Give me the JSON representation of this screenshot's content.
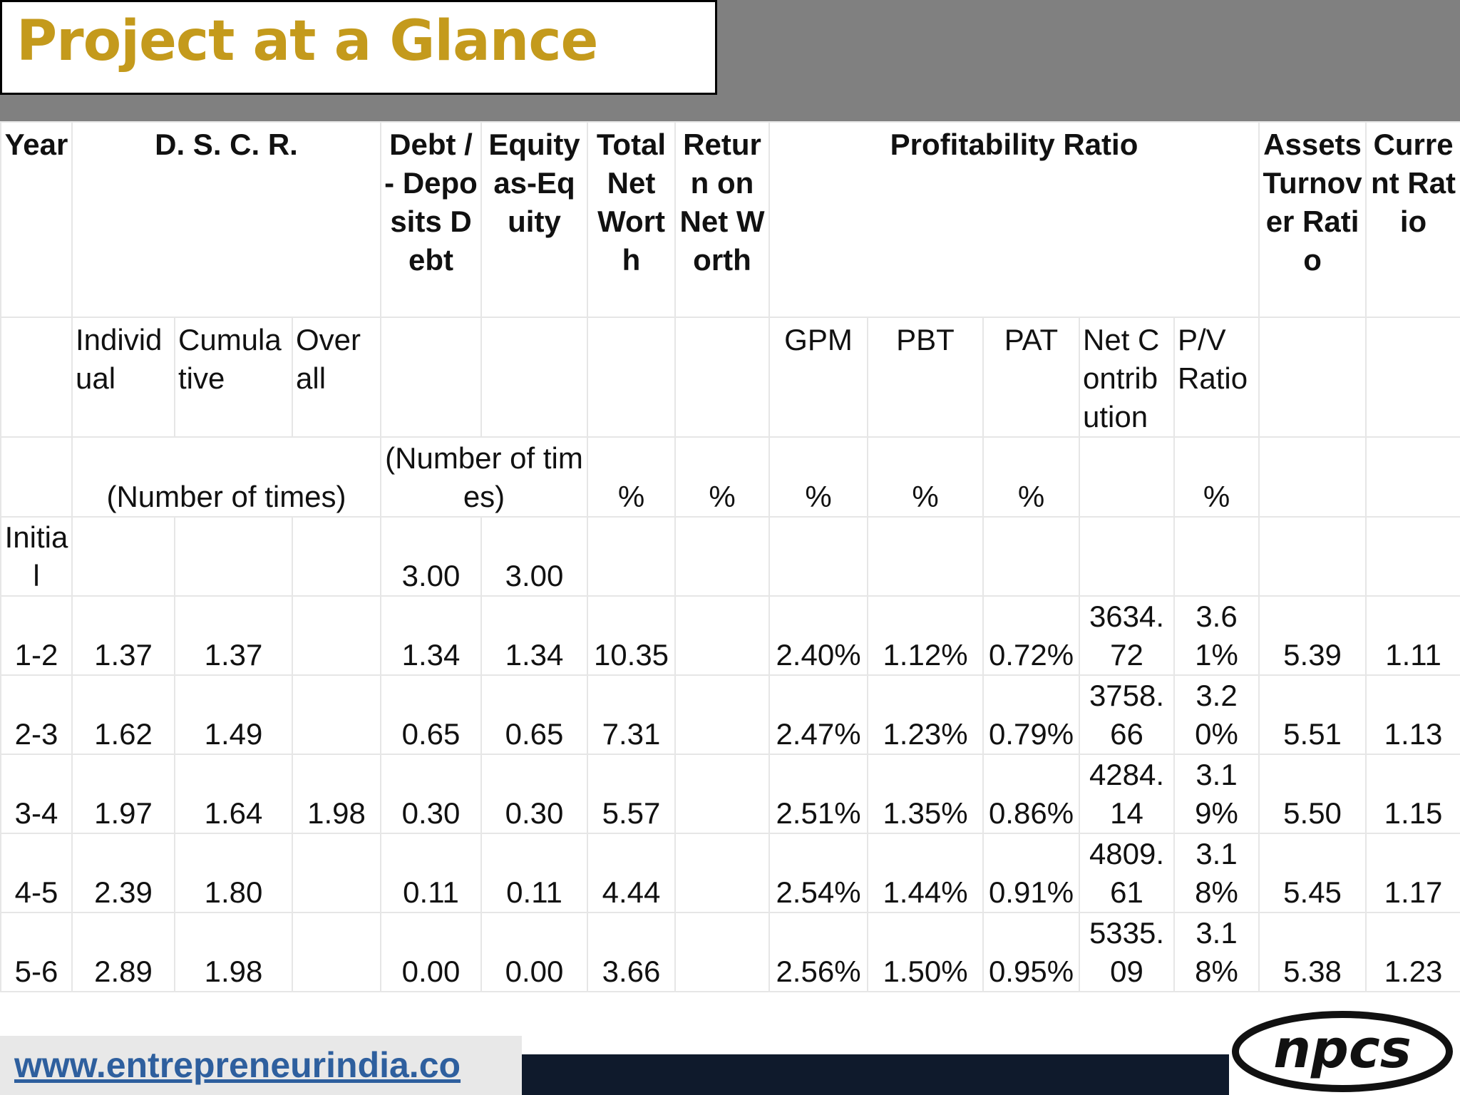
{
  "header": {
    "title": "Project at a Glance"
  },
  "table": {
    "header_row1": [
      "Year",
      "D. S. C. R.",
      "Debt / - Deposits Debt",
      "Equity as-Equity",
      "Total Net Worth",
      "Return on Net Worth",
      "Profitability Ratio",
      "Assets Turnover Ratio",
      "Current Ratio"
    ],
    "header_row2": [
      "Individual",
      "Cumulative",
      "Overall",
      "GPM",
      "PBT",
      "PAT",
      "Net Contribution",
      "P/V Ratio"
    ],
    "header_row3": [
      "(Number of times)",
      "(Number of times)",
      "%",
      "%",
      "%",
      "%",
      "%",
      "%"
    ],
    "rows": [
      [
        "Initial",
        null,
        null,
        null,
        "3.00",
        "3.00",
        null,
        null,
        null,
        null,
        null,
        null,
        null,
        null,
        null
      ],
      [
        "1-2",
        "1.37",
        "1.37",
        null,
        "1.34",
        "1.34",
        "10.35",
        null,
        "2.40%",
        "1.12%",
        "0.72%",
        "3634.72",
        "3.61%",
        "5.39",
        "1.11"
      ],
      [
        "2-3",
        "1.62",
        "1.49",
        null,
        "0.65",
        "0.65",
        "7.31",
        null,
        "2.47%",
        "1.23%",
        "0.79%",
        "3758.66",
        "3.20%",
        "5.51",
        "1.13"
      ],
      [
        "3-4",
        "1.97",
        "1.64",
        "1.98",
        "0.30",
        "0.30",
        "5.57",
        null,
        "2.51%",
        "1.35%",
        "0.86%",
        "4284.14",
        "3.19%",
        "5.50",
        "1.15"
      ],
      [
        "4-5",
        "2.39",
        "1.80",
        null,
        "0.11",
        "0.11",
        "4.44",
        null,
        "2.54%",
        "1.44%",
        "0.91%",
        "4809.61",
        "3.18%",
        "5.45",
        "1.17"
      ],
      [
        "5-6",
        "2.89",
        "1.98",
        null,
        "0.00",
        "0.00",
        "3.66",
        null,
        "2.56%",
        "1.50%",
        "0.95%",
        "5335.09",
        "3.18%",
        "5.38",
        "1.23"
      ]
    ]
  },
  "footer": {
    "url": "www.entrepreneurindia.co",
    "logo": "npcs"
  }
}
